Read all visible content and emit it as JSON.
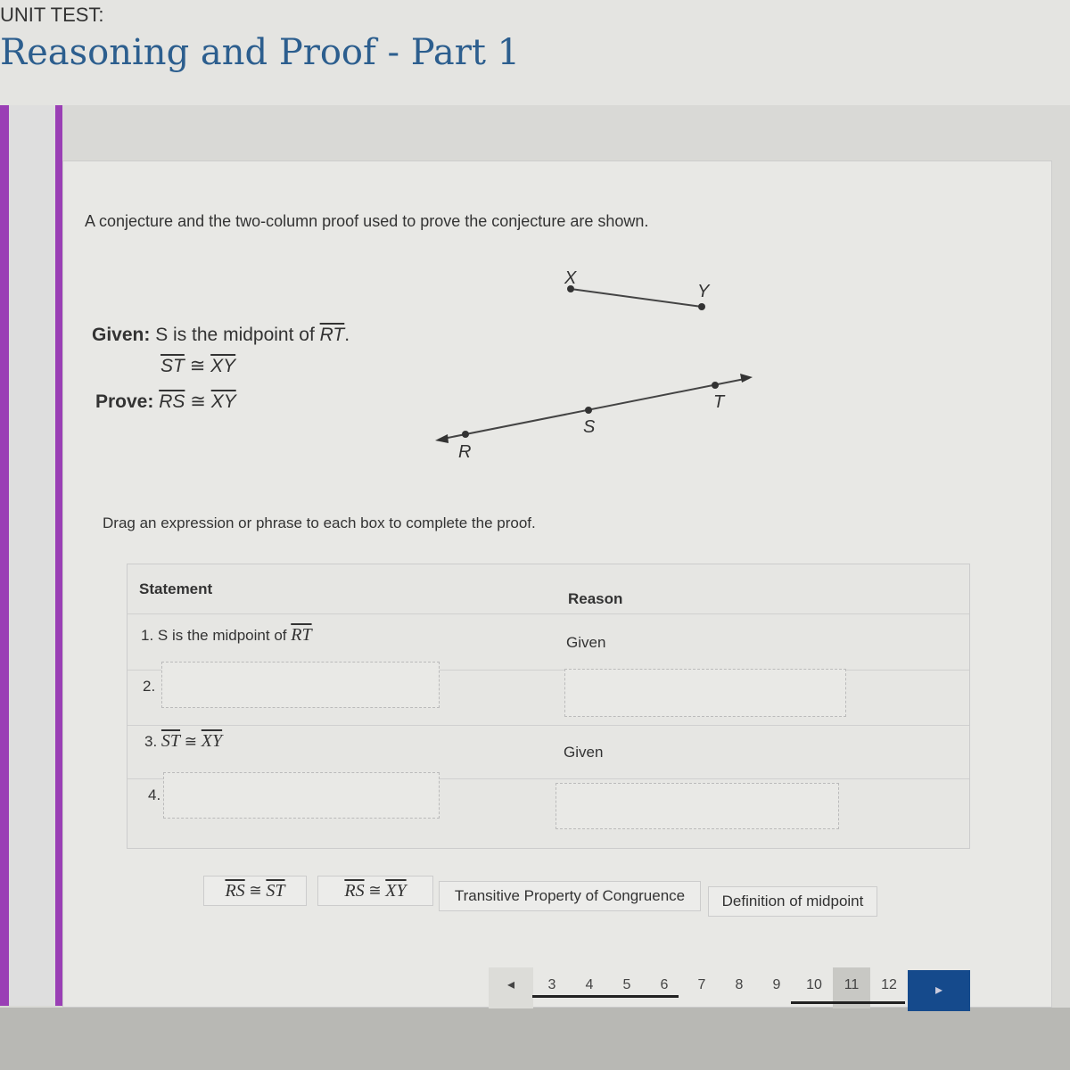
{
  "header": {
    "unit": "UNIT TEST:",
    "title": "Reasoning and Proof - Part 1"
  },
  "question": {
    "intro": "A conjecture and the two-column proof used to prove the conjecture are shown.",
    "given_label": "Given:",
    "given_text": "S is the midpoint of ",
    "given_seg": "RT",
    "given_end": ".",
    "given2_a": "ST",
    "given2_b": "XY",
    "cong": "≅",
    "prove_label": "Prove:",
    "prove_a": "RS",
    "prove_b": "XY",
    "points": {
      "X": "X",
      "Y": "Y",
      "R": "R",
      "S": "S",
      "T": "T"
    },
    "instruction": "Drag an expression or phrase to each box to complete the proof."
  },
  "table": {
    "statement_header": "Statement",
    "reason_header": "Reason",
    "rows": [
      {
        "num": "1.",
        "statement": "S is the midpoint of ",
        "seg": "RT",
        "reason": "Given"
      },
      {
        "num": "2.",
        "statement": "",
        "reason": ""
      },
      {
        "num": "3.",
        "seg_a": "ST",
        "seg_b": "XY",
        "reason": "Given"
      },
      {
        "num": "4.",
        "statement": "",
        "reason": ""
      }
    ]
  },
  "choices": [
    {
      "a": "RS",
      "b": "ST"
    },
    {
      "a": "RS",
      "b": "XY"
    },
    {
      "label": "Transitive Property of Congruence"
    },
    {
      "label": "Definition of midpoint"
    }
  ],
  "pager": {
    "prev": "◂",
    "pages": [
      "3",
      "4",
      "5",
      "6",
      "7",
      "8",
      "9",
      "10",
      "11",
      "12"
    ],
    "current": "11",
    "next": "▸"
  },
  "colors": {
    "accent": "#9a3fb5",
    "title": "#2c5e8e",
    "next": "#154a8c"
  }
}
